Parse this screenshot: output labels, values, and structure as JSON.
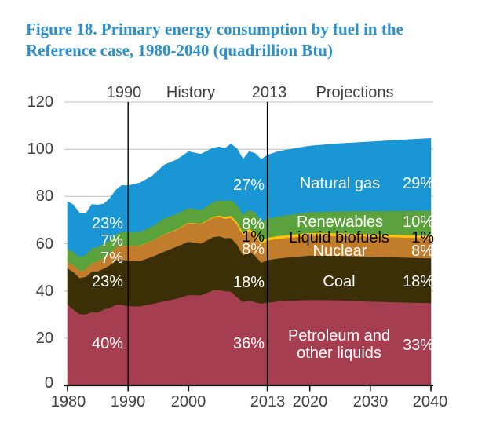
{
  "title": "Figure 18. Primary energy consumption by fuel in the\nReference case, 1980-2040 (quadrillion Btu)",
  "palette": {
    "title_text": "#2b91cd",
    "axis_text": "#3f3f3f",
    "gridline": "#bcbcbc",
    "axis_line": "#111111",
    "marker_line": "#000000",
    "label_on_dark": "#ffffff",
    "label_on_light": "#000000"
  },
  "chart_data": {
    "type": "area",
    "stacked": true,
    "title": "Primary energy consumption by fuel in the Reference case, 1980-2040",
    "units": "quadrillion Btu",
    "xlim": [
      1980,
      2040
    ],
    "ylim": [
      0,
      120
    ],
    "grid": "horizontal",
    "legend_position": "labels-inside-bands",
    "y_gridlines": [
      20,
      40,
      60,
      80,
      100,
      120
    ],
    "y_ticks": [
      {
        "value": 120,
        "label": "120"
      },
      {
        "value": 100,
        "label": "100"
      },
      {
        "value": 80,
        "label": "80"
      },
      {
        "value": 60,
        "label": "60"
      },
      {
        "value": 40,
        "label": "40"
      },
      {
        "value": 20,
        "label": "20"
      },
      {
        "value": 0,
        "label": "0"
      }
    ],
    "x_ticks": [
      {
        "value": 1980,
        "label": "1980"
      },
      {
        "value": 1990,
        "label": "1990"
      },
      {
        "value": 2000,
        "label": "2000"
      },
      {
        "value": 2013,
        "label": "2013"
      },
      {
        "value": 2020,
        "label": "2020"
      },
      {
        "value": 2030,
        "label": "2030"
      },
      {
        "value": 2040,
        "label": "2040"
      }
    ],
    "markers": [
      {
        "year": 1990,
        "label": "1990"
      },
      {
        "year": 2013,
        "label": "2013"
      }
    ],
    "period_labels": {
      "history": "History",
      "projections": "Projections"
    },
    "x_years": [
      1980,
      1981,
      1982,
      1983,
      1984,
      1985,
      1986,
      1987,
      1988,
      1989,
      1990,
      1992,
      1994,
      1996,
      1998,
      2000,
      2002,
      2004,
      2005,
      2006,
      2007,
      2008,
      2009,
      2010,
      2011,
      2012,
      2013,
      2015,
      2020,
      2025,
      2030,
      2035,
      2040
    ],
    "series": [
      {
        "name": "Petroleum and other liquids",
        "label": "Petroleum and\nother liquids",
        "color": "#a53e51",
        "shares": {
          "1990": "40%",
          "2013": "36%",
          "2040": "33%"
        },
        "values": [
          34.2,
          32.1,
          30.2,
          30.1,
          31.1,
          30.9,
          32.2,
          32.9,
          34.2,
          34.2,
          33.6,
          33.5,
          34.6,
          35.7,
          36.8,
          38.3,
          38.2,
          40.3,
          40.4,
          39.9,
          39.8,
          37.3,
          35.4,
          36.0,
          35.3,
          34.7,
          35.1,
          35.7,
          36.3,
          36.1,
          35.6,
          35.2,
          34.9
        ]
      },
      {
        "name": "Coal",
        "label": "Coal",
        "color": "#3b2f08",
        "shares": {
          "1990": "23%",
          "2013": "18%",
          "2040": "18%"
        },
        "values": [
          15.4,
          15.9,
          15.3,
          15.9,
          17.1,
          17.5,
          17.3,
          18.0,
          18.8,
          19.1,
          19.2,
          19.2,
          19.9,
          21.0,
          22.0,
          22.6,
          21.9,
          22.5,
          22.8,
          22.5,
          22.7,
          22.4,
          19.7,
          20.8,
          19.6,
          17.3,
          18.0,
          18.2,
          18.7,
          18.8,
          18.9,
          19.0,
          19.0
        ]
      },
      {
        "name": "Nuclear",
        "label": "Nuclear",
        "color": "#c17d2b",
        "shares": {
          "1990": "7%",
          "2013": "8%",
          "2040": "8%"
        },
        "values": [
          2.7,
          3.0,
          3.1,
          3.2,
          3.6,
          4.1,
          4.5,
          4.9,
          5.6,
          5.7,
          6.1,
          6.5,
          6.8,
          7.2,
          7.1,
          7.9,
          8.1,
          8.2,
          8.2,
          8.2,
          8.5,
          8.4,
          8.4,
          8.4,
          8.3,
          8.1,
          8.3,
          8.3,
          8.4,
          8.4,
          8.5,
          8.5,
          8.5
        ]
      },
      {
        "name": "Liquid biofuels",
        "label": "Liquid biofuels",
        "color": "#fec20e",
        "shares": {
          "2013": "1%",
          "2040": "1%"
        },
        "values": [
          0,
          0,
          0,
          0,
          0,
          0,
          0,
          0,
          0,
          0,
          0.1,
          0.1,
          0.1,
          0.1,
          0.2,
          0.2,
          0.3,
          0.4,
          0.6,
          0.8,
          0.9,
          1.1,
          1.2,
          1.3,
          1.3,
          1.2,
          1.2,
          1.2,
          1.2,
          1.2,
          1.1,
          1.1,
          1.1
        ]
      },
      {
        "name": "Renewables",
        "label": "Renewables",
        "color": "#5ca23c",
        "shares": {
          "1990": "7%",
          "2013": "8%",
          "2040": "10%"
        },
        "values": [
          5.4,
          5.5,
          5.8,
          6.0,
          6.3,
          6.1,
          6.1,
          5.7,
          5.5,
          6.1,
          6.0,
          5.8,
          6.0,
          6.8,
          6.6,
          6.2,
          5.8,
          6.2,
          6.4,
          6.8,
          6.6,
          7.2,
          7.6,
          8.0,
          8.7,
          8.3,
          8.0,
          8.3,
          8.8,
          9.3,
          9.8,
          10.2,
          10.6
        ]
      },
      {
        "name": "Natural gas",
        "label": "Natural gas",
        "color": "#1a96d4",
        "shares": {
          "1990": "23%",
          "2013": "27%",
          "2040": "29%"
        },
        "values": [
          20.2,
          19.9,
          18.5,
          17.4,
          18.5,
          17.8,
          16.7,
          17.7,
          18.6,
          19.6,
          19.6,
          20.7,
          21.3,
          22.6,
          22.8,
          23.8,
          23.6,
          22.9,
          22.6,
          22.2,
          23.7,
          23.8,
          23.4,
          24.6,
          25.0,
          26.1,
          26.9,
          27.5,
          28.0,
          28.6,
          29.2,
          29.9,
          30.5
        ]
      }
    ]
  }
}
